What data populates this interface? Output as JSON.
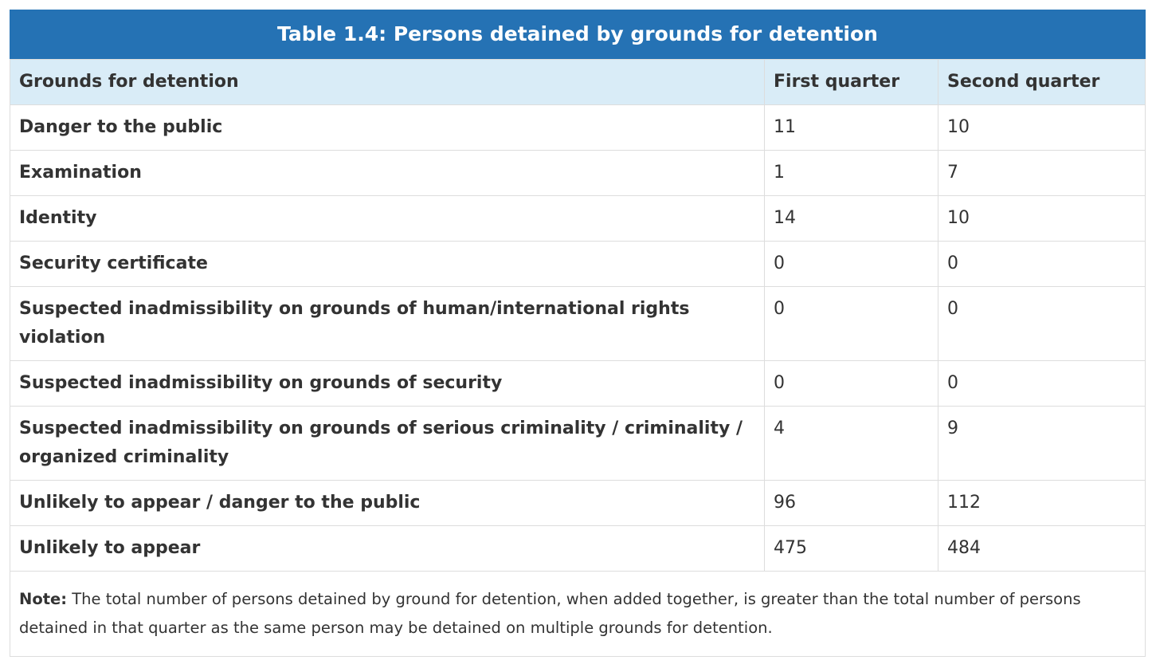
{
  "table": {
    "caption": "Table 1.4: Persons detained by grounds for detention",
    "headers": [
      "Grounds for detention",
      "First quarter",
      "Second quarter"
    ],
    "rows": [
      {
        "ground": "Danger to the public",
        "q1": "11",
        "q2": "10"
      },
      {
        "ground": "Examination",
        "q1": "1",
        "q2": "7"
      },
      {
        "ground": "Identity",
        "q1": "14",
        "q2": "10"
      },
      {
        "ground": "Security certificate",
        "q1": "0",
        "q2": "0"
      },
      {
        "ground": "Suspected inadmissibility on grounds of human/international rights violation",
        "q1": "0",
        "q2": "0"
      },
      {
        "ground": "Suspected inadmissibility on grounds of security",
        "q1": "0",
        "q2": "0"
      },
      {
        "ground": "Suspected inadmissibility on grounds of serious criminality / criminality / organized criminality",
        "q1": "4",
        "q2": "9"
      },
      {
        "ground": "Unlikely to appear / danger to the public",
        "q1": "96",
        "q2": "112"
      },
      {
        "ground": "Unlikely to appear",
        "q1": "475",
        "q2": "484"
      }
    ],
    "note_label": "Note:",
    "note_text": " The total number of persons detained by ground for detention, when added together, is greater than the total number of persons detained in that quarter as the same person may be detained on multiple grounds for detention."
  }
}
